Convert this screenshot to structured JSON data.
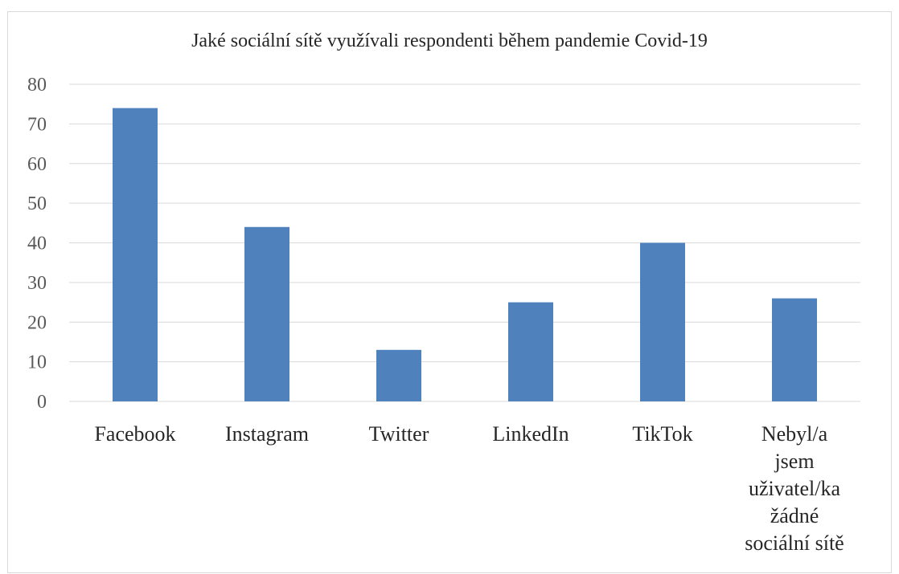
{
  "chart_data": {
    "type": "bar",
    "title": "Jaké sociální sítě využívali respondenti během pandemie Covid-19",
    "xlabel": "",
    "ylabel": "",
    "categories": [
      "Facebook",
      "Instagram",
      "Twitter",
      "LinkedIn",
      "TikTok",
      "Nebyl/a jsem uživatel/ka žádné sociální sítě"
    ],
    "category_lines": [
      [
        "Facebook"
      ],
      [
        "Instagram"
      ],
      [
        "Twitter"
      ],
      [
        "LinkedIn"
      ],
      [
        "TikTok"
      ],
      [
        "Nebyl/a",
        "jsem",
        "uživatel/ka",
        "žádné",
        "sociální sítě"
      ]
    ],
    "values": [
      74,
      44,
      13,
      25,
      40,
      26
    ],
    "ylim": [
      0,
      80
    ],
    "yticks": [
      0,
      10,
      20,
      30,
      40,
      50,
      60,
      70,
      80
    ],
    "grid": true,
    "legend": "none",
    "bar_color": "#4f81bd"
  }
}
